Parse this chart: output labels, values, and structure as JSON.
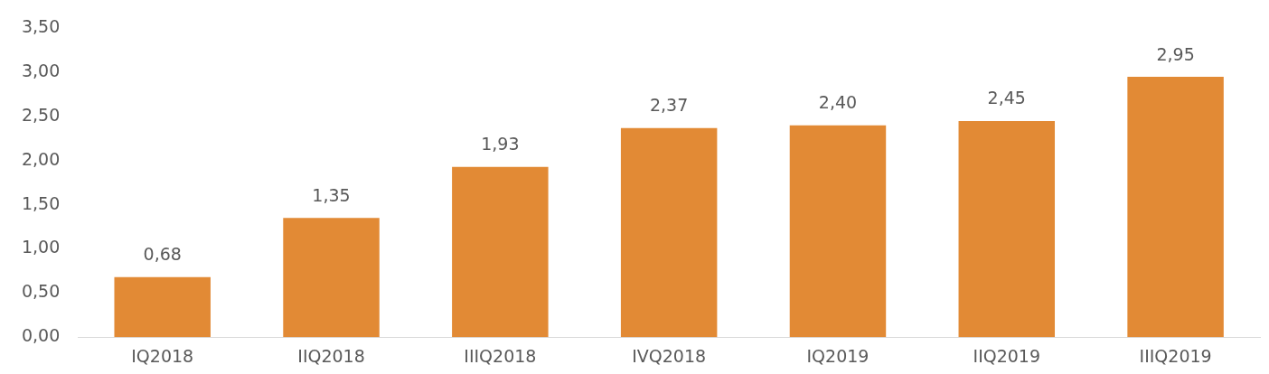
{
  "chart_data": {
    "type": "bar",
    "categories": [
      "IQ2018",
      "IIQ2018",
      "IIIQ2018",
      "IVQ2018",
      "IQ2019",
      "IIQ2019",
      "IIIQ2019"
    ],
    "values": [
      0.68,
      1.35,
      1.93,
      2.37,
      2.4,
      2.45,
      2.95
    ],
    "value_labels": [
      "0,68",
      "1,35",
      "1,93",
      "2,37",
      "2,40",
      "2,45",
      "2,95"
    ],
    "color": "#e28a35",
    "ylim": [
      0,
      3.5
    ],
    "yticks": [
      {
        "value": 0,
        "label": "0,00"
      },
      {
        "value": 0.5,
        "label": "0,50"
      },
      {
        "value": 1,
        "label": "1,00"
      },
      {
        "value": 1.5,
        "label": "1,50"
      },
      {
        "value": 2,
        "label": "2,00"
      },
      {
        "value": 2.5,
        "label": "2,50"
      },
      {
        "value": 3,
        "label": "3,00"
      },
      {
        "value": 3.5,
        "label": "3,50"
      }
    ]
  }
}
